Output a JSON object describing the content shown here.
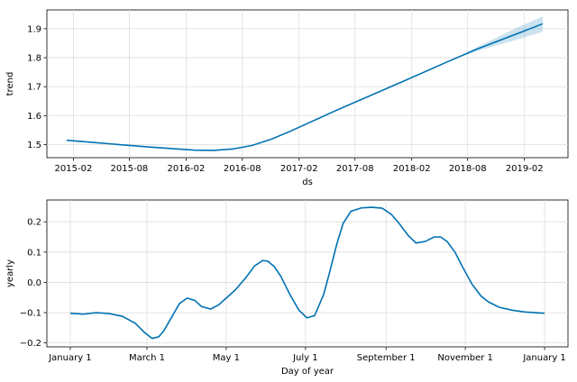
{
  "chart_data": [
    {
      "type": "line",
      "xlabel": "ds",
      "ylabel": "trend",
      "x_tick_labels": [
        "2015-02",
        "2015-08",
        "2016-02",
        "2016-08",
        "2017-02",
        "2017-08",
        "2018-02",
        "2018-08",
        "2019-02"
      ],
      "x_ticks": [
        "2015-02-01",
        "2015-08-01",
        "2016-02-01",
        "2016-08-01",
        "2017-02-01",
        "2017-08-01",
        "2018-02-01",
        "2018-08-01",
        "2019-02-01"
      ],
      "y_ticks": [
        1.5,
        1.6,
        1.7,
        1.8,
        1.9
      ],
      "y_tick_labels": [
        "1.5",
        "1.6",
        "1.7",
        "1.8",
        "1.9"
      ],
      "xlim": [
        "2014-11-07",
        "2019-06-22"
      ],
      "ylim": [
        1.455,
        1.965
      ],
      "grid": true,
      "color": "#0072B2",
      "series": [
        {
          "x": [
            "2015-01-10",
            "2015-04-01",
            "2015-07-01",
            "2015-10-01",
            "2016-01-01",
            "2016-03-01",
            "2016-05-01",
            "2016-07-01",
            "2016-09-01",
            "2016-11-01",
            "2017-01-01",
            "2017-06-01",
            "2018-01-01",
            "2018-06-01",
            "2018-09-01",
            "2019-01-01",
            "2019-04-01"
          ],
          "y": [
            1.515,
            1.508,
            1.5,
            1.492,
            1.485,
            1.481,
            1.48,
            1.485,
            1.497,
            1.518,
            1.545,
            1.618,
            1.717,
            1.788,
            1.83,
            1.88,
            1.917
          ]
        }
      ],
      "uncertainty": {
        "x": [
          "2018-06-01",
          "2018-09-01",
          "2019-01-01",
          "2019-04-01"
        ],
        "lower": [
          1.788,
          1.823,
          1.86,
          1.89
        ],
        "upper": [
          1.788,
          1.837,
          1.9,
          1.943
        ]
      }
    },
    {
      "type": "line",
      "xlabel": "Day of year",
      "ylabel": "yearly",
      "x_tick_labels": [
        "January 1",
        "March 1",
        "May 1",
        "July 1",
        "September 1",
        "November 1",
        "January 1"
      ],
      "x_ticks": [
        0,
        59,
        120,
        181,
        243,
        304,
        365
      ],
      "y_ticks": [
        -0.2,
        -0.1,
        0.0,
        0.1,
        0.2
      ],
      "y_tick_labels": [
        "−0.2",
        "−0.1",
        "0.0",
        "0.1",
        "0.2"
      ],
      "xlim": [
        -18,
        383
      ],
      "ylim": [
        -0.213,
        0.272
      ],
      "grid": true,
      "color": "#0072B2",
      "series": [
        {
          "x": [
            0,
            10,
            20,
            30,
            40,
            50,
            57,
            63,
            68,
            72,
            78,
            84,
            90,
            96,
            101,
            108,
            114,
            120,
            127,
            135,
            142,
            148,
            152,
            157,
            162,
            169,
            176,
            182,
            188,
            195,
            200,
            205,
            210,
            216,
            224,
            232,
            240,
            247,
            253,
            260,
            266,
            273,
            280,
            285,
            290,
            296,
            302,
            309,
            316,
            322,
            330,
            340,
            350,
            358,
            365
          ],
          "y": [
            -0.102,
            -0.105,
            -0.1,
            -0.103,
            -0.112,
            -0.135,
            -0.165,
            -0.185,
            -0.18,
            -0.16,
            -0.115,
            -0.07,
            -0.052,
            -0.06,
            -0.08,
            -0.088,
            -0.075,
            -0.052,
            -0.025,
            0.015,
            0.055,
            0.072,
            0.07,
            0.052,
            0.02,
            -0.04,
            -0.092,
            -0.117,
            -0.11,
            -0.04,
            0.04,
            0.125,
            0.195,
            0.235,
            0.246,
            0.248,
            0.245,
            0.225,
            0.195,
            0.155,
            0.13,
            0.135,
            0.15,
            0.15,
            0.135,
            0.1,
            0.05,
            -0.005,
            -0.045,
            -0.065,
            -0.082,
            -0.092,
            -0.098,
            -0.1,
            -0.102
          ]
        }
      ]
    }
  ]
}
